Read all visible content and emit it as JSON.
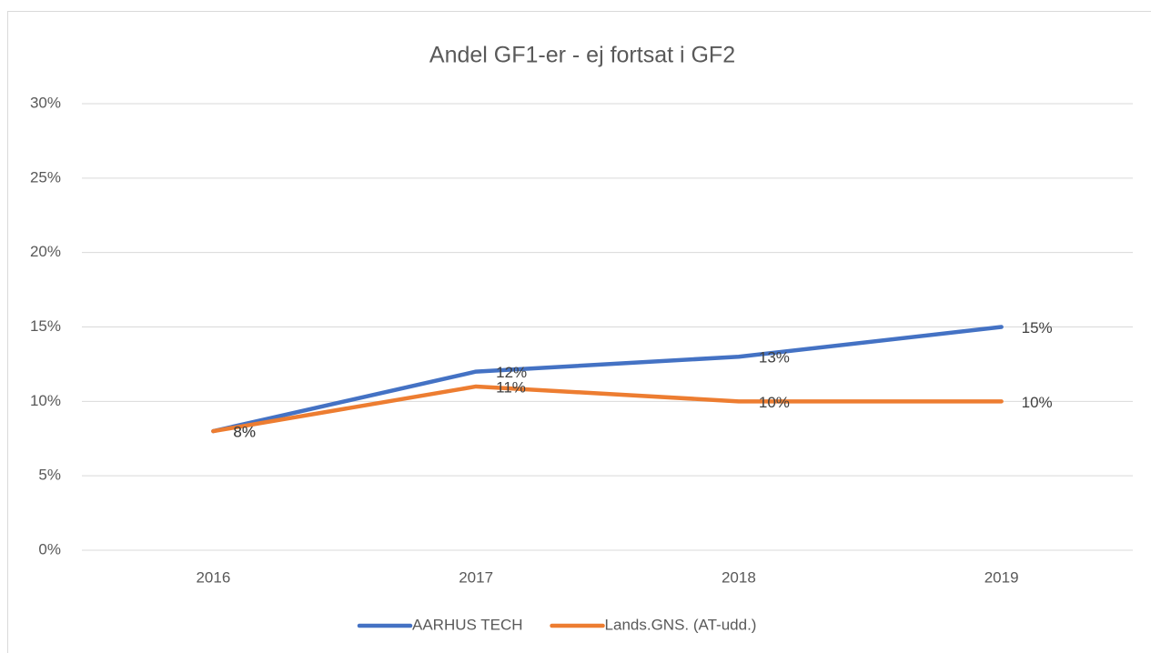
{
  "chart_data": {
    "type": "line",
    "title": "Andel GF1-er - ej fortsat i GF2",
    "categories": [
      "2016",
      "2017",
      "2018",
      "2019"
    ],
    "series": [
      {
        "name": "AARHUS TECH",
        "color": "#4472c4",
        "values": [
          8,
          12,
          13,
          15
        ],
        "value_labels": [
          "8%",
          "12%",
          "13%",
          "15%"
        ]
      },
      {
        "name": "Lands.GNS. (AT-udd.)",
        "color": "#ed7d31",
        "values": [
          8,
          11,
          10,
          10
        ],
        "value_labels": [
          "8%",
          "11%",
          "10%",
          "10%"
        ]
      }
    ],
    "ylim": [
      0,
      30
    ],
    "yticks": [
      {
        "value": 0,
        "label": "0%"
      },
      {
        "value": 5,
        "label": "5%"
      },
      {
        "value": 10,
        "label": "10%"
      },
      {
        "value": 15,
        "label": "15%"
      },
      {
        "value": 20,
        "label": "20%"
      },
      {
        "value": 25,
        "label": "25%"
      },
      {
        "value": 30,
        "label": "30%"
      }
    ],
    "grid": true,
    "legend": "bottom"
  }
}
